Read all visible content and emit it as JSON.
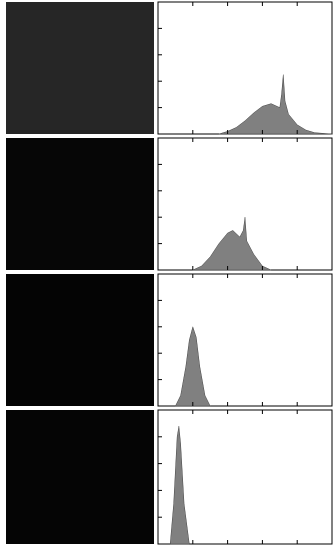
{
  "chart_data": [
    {
      "type": "area",
      "color": "#808080",
      "xlim": [
        0,
        1
      ],
      "ylim": [
        0,
        1
      ],
      "xticks": [
        0.2,
        0.4,
        0.6,
        0.8
      ],
      "yticks": [
        0.2,
        0.4,
        0.6,
        0.8
      ],
      "x": [
        0.35,
        0.4,
        0.45,
        0.5,
        0.55,
        0.6,
        0.65,
        0.7,
        0.71,
        0.72,
        0.73,
        0.75,
        0.8,
        0.85,
        0.9,
        1.0
      ],
      "values": [
        0,
        0.02,
        0.05,
        0.1,
        0.16,
        0.21,
        0.23,
        0.2,
        0.3,
        0.45,
        0.25,
        0.15,
        0.07,
        0.03,
        0.01,
        0
      ]
    },
    {
      "type": "area",
      "color": "#808080",
      "xlim": [
        0,
        1
      ],
      "ylim": [
        0,
        1
      ],
      "xticks": [
        0.2,
        0.4,
        0.6,
        0.8
      ],
      "yticks": [
        0.2,
        0.4,
        0.6,
        0.8
      ],
      "x": [
        0.2,
        0.25,
        0.3,
        0.35,
        0.4,
        0.43,
        0.47,
        0.49,
        0.5,
        0.51,
        0.55,
        0.6,
        0.65
      ],
      "values": [
        0,
        0.03,
        0.1,
        0.2,
        0.28,
        0.3,
        0.25,
        0.3,
        0.4,
        0.22,
        0.12,
        0.03,
        0
      ]
    },
    {
      "type": "area",
      "color": "#808080",
      "xlim": [
        0,
        1
      ],
      "ylim": [
        0,
        1
      ],
      "xticks": [
        0.2,
        0.4,
        0.6,
        0.8
      ],
      "yticks": [
        0.2,
        0.4,
        0.6,
        0.8
      ],
      "x": [
        0.1,
        0.13,
        0.16,
        0.18,
        0.2,
        0.22,
        0.24,
        0.27,
        0.3
      ],
      "values": [
        0,
        0.08,
        0.3,
        0.5,
        0.6,
        0.52,
        0.3,
        0.08,
        0
      ]
    },
    {
      "type": "area",
      "color": "#808080",
      "xlim": [
        0,
        1
      ],
      "ylim": [
        0,
        1
      ],
      "xticks": [
        0.2,
        0.4,
        0.6,
        0.8
      ],
      "yticks": [
        0.2,
        0.4,
        0.6,
        0.8
      ],
      "x": [
        0.07,
        0.09,
        0.11,
        0.12,
        0.13,
        0.15,
        0.18
      ],
      "values": [
        0,
        0.3,
        0.8,
        0.88,
        0.75,
        0.3,
        0
      ]
    }
  ]
}
